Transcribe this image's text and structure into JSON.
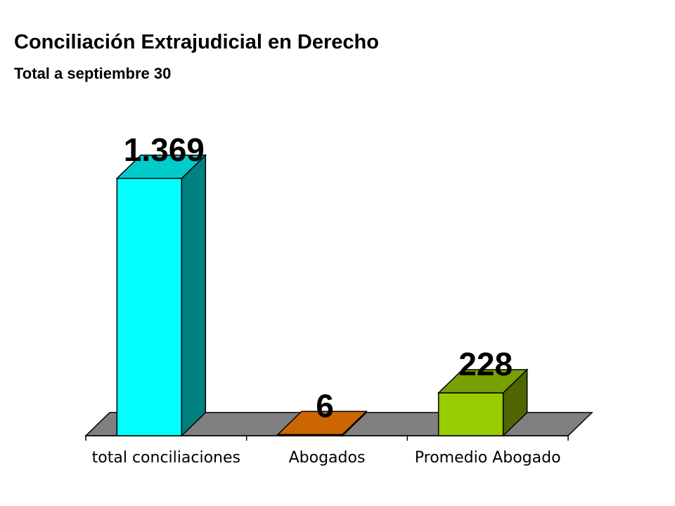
{
  "title": "Conciliación Extrajudicial en Derecho",
  "subtitle": "Total a septiembre 30",
  "chart_data": {
    "type": "bar",
    "style": "3d",
    "title": "Conciliación Extrajudicial en Derecho",
    "subtitle": "Total a septiembre 30",
    "categories": [
      "total conciliaciones",
      "Abogados",
      "Promedio Abogado"
    ],
    "values": [
      1369,
      6,
      228
    ],
    "data_labels": [
      "1.369",
      "6",
      "228"
    ],
    "xlabel": "",
    "ylabel": "",
    "ylim": [
      0,
      1600
    ],
    "grid": false,
    "legend": "none",
    "floor_color": "#808080",
    "bar_colors": [
      {
        "front": "#00FFFF",
        "side": "#008080",
        "top": "#00CCCC"
      },
      {
        "front": "#CC6600",
        "side": "#994C00",
        "top": "#CC6600"
      },
      {
        "front": "#99CC00",
        "side": "#4D6600",
        "top": "#77A000"
      }
    ]
  }
}
